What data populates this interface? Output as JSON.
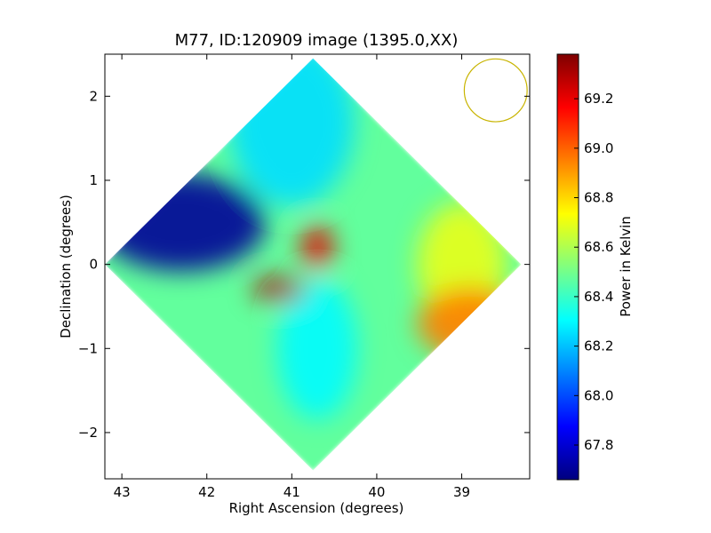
{
  "chart_data": {
    "type": "heatmap",
    "title": "M77, ID:120909 image (1395.0,XX)",
    "xlabel": "Right Ascension (degrees)",
    "ylabel": "Declination (degrees)",
    "xlim": [
      43.2,
      38.2
    ],
    "ylim": [
      -2.55,
      2.5
    ],
    "x_ticks": [
      {
        "value": 43,
        "label": "43"
      },
      {
        "value": 42,
        "label": "42"
      },
      {
        "value": 41,
        "label": "41"
      },
      {
        "value": 40,
        "label": "40"
      },
      {
        "value": 39,
        "label": "39"
      }
    ],
    "y_ticks": [
      {
        "value": 2,
        "label": "2"
      },
      {
        "value": 1,
        "label": "1"
      },
      {
        "value": 0,
        "label": "0"
      },
      {
        "value": -1,
        "label": "−1"
      },
      {
        "value": -2,
        "label": "−2"
      }
    ],
    "colorbar": {
      "label": "Power in Kelvin",
      "min": 67.66,
      "max": 69.38,
      "colormap": "jet",
      "ticks": [
        {
          "value": 67.8,
          "label": "67.8"
        },
        {
          "value": 68.0,
          "label": "68.0"
        },
        {
          "value": 68.2,
          "label": "68.2"
        },
        {
          "value": 68.4,
          "label": "68.4"
        },
        {
          "value": 68.6,
          "label": "68.6"
        },
        {
          "value": 68.8,
          "label": "68.8"
        },
        {
          "value": 69.0,
          "label": "69.0"
        },
        {
          "value": 69.2,
          "label": "69.2"
        }
      ]
    },
    "map": {
      "shape": "diamond",
      "center": {
        "ra": 40.75,
        "dec": 0.0
      },
      "half_extent_ra": 2.45,
      "half_extent_dec": 2.45,
      "background_value": 68.47,
      "features": [
        {
          "name": "cold-lobe-northeast",
          "ra": 42.3,
          "dec": 0.5,
          "value": 67.7
        },
        {
          "name": "cool-region-north",
          "ra": 41.0,
          "dec": 1.7,
          "value": 68.25
        },
        {
          "name": "cool-region-south",
          "ra": 40.7,
          "dec": -1.0,
          "value": 68.3
        },
        {
          "name": "hot-core-southeast",
          "ra": 41.15,
          "dec": -0.3,
          "value": 69.3
        },
        {
          "name": "hot-core-north",
          "ra": 40.7,
          "dec": 0.2,
          "value": 69.2
        },
        {
          "name": "warm-region-southwest",
          "ra": 38.9,
          "dec": -0.7,
          "value": 68.95
        },
        {
          "name": "warm-region-west",
          "ra": 39.0,
          "dec": 0.0,
          "value": 68.7
        }
      ]
    },
    "beam_circle": {
      "ra": 38.6,
      "dec": 2.07,
      "radius_deg": 0.37,
      "color": "#c8b400"
    },
    "grid": false,
    "legend": "none"
  }
}
